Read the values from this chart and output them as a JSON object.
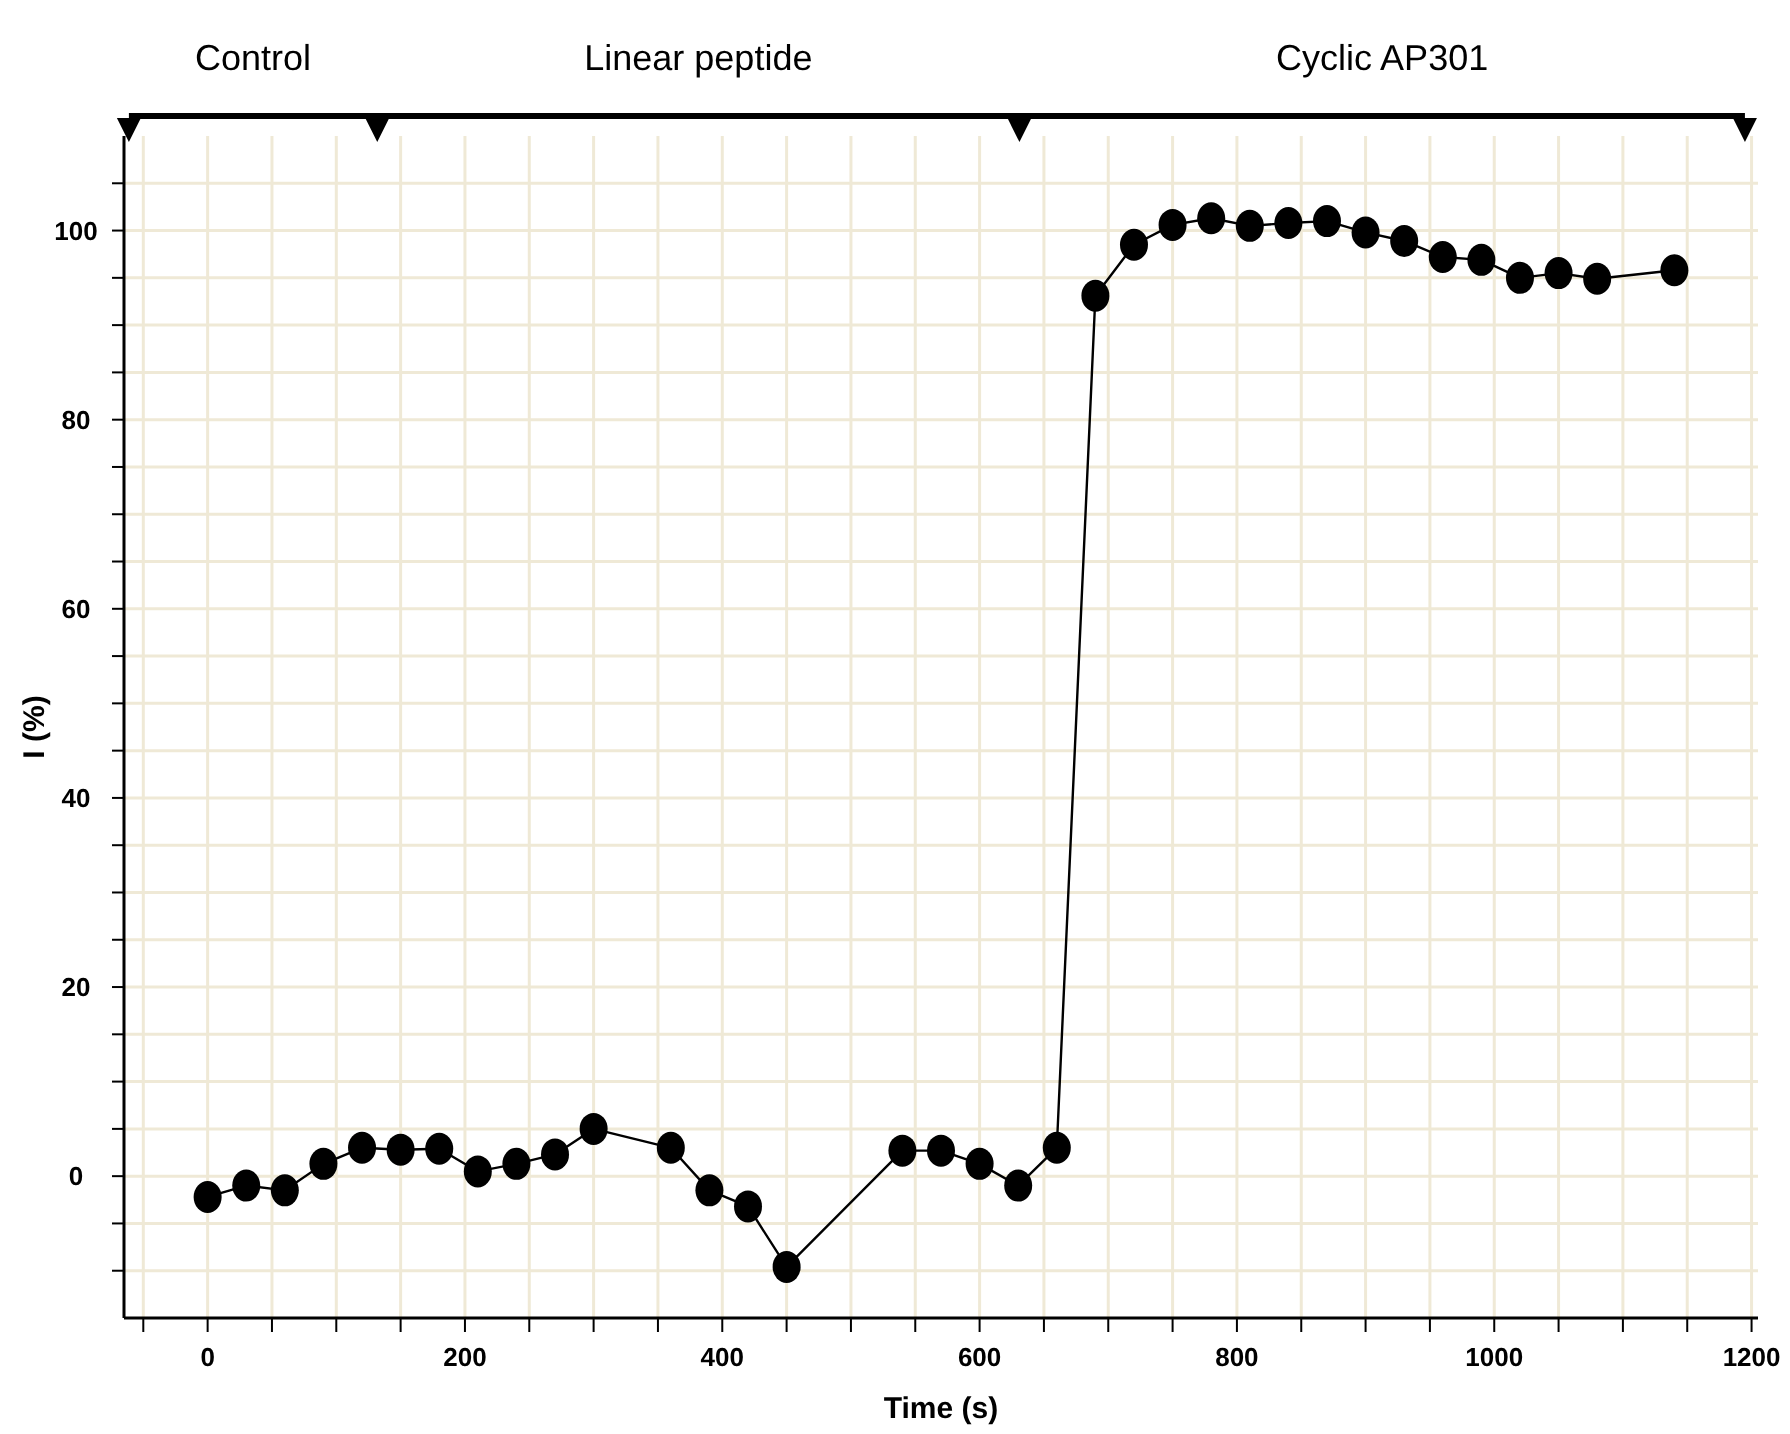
{
  "chart_data": {
    "type": "line",
    "xlabel": "Time (s)",
    "ylabel": "I (%)",
    "x": [
      0,
      30,
      60,
      90,
      120,
      150,
      180,
      210,
      240,
      270,
      300,
      360,
      390,
      420,
      450,
      540,
      570,
      600,
      630,
      660,
      690,
      720,
      750,
      780,
      810,
      840,
      870,
      900,
      930,
      960,
      990,
      1020,
      1050,
      1080,
      1140
    ],
    "series": [
      {
        "color": "#000000",
        "values": [
          -2.2,
          -1.0,
          -1.5,
          1.3,
          3.0,
          2.8,
          2.9,
          0.5,
          1.3,
          2.3,
          5.0,
          3.0,
          -1.5,
          -3.2,
          -9.6,
          2.7,
          2.7,
          1.3,
          -1.0,
          3.0,
          93.1,
          98.5,
          100.6,
          101.3,
          100.5,
          100.8,
          101.0,
          99.8,
          98.9,
          97.2,
          96.9,
          95.0,
          95.5,
          94.9,
          95.8
        ]
      }
    ],
    "xlim": [
      -65,
      1205
    ],
    "ylim": [
      -15,
      110
    ],
    "xticks": [
      {
        "value": -50,
        "label": null
      },
      0,
      {
        "value": 50,
        "label": null
      },
      {
        "value": 100,
        "label": null
      },
      {
        "value": 150,
        "label": null
      },
      200,
      {
        "value": 250,
        "label": null
      },
      {
        "value": 300,
        "label": null
      },
      {
        "value": 350,
        "label": null
      },
      400,
      {
        "value": 450,
        "label": null
      },
      {
        "value": 500,
        "label": null
      },
      {
        "value": 550,
        "label": null
      },
      600,
      {
        "value": 650,
        "label": null
      },
      {
        "value": 700,
        "label": null
      },
      {
        "value": 750,
        "label": null
      },
      800,
      {
        "value": 850,
        "label": null
      },
      {
        "value": 900,
        "label": null
      },
      {
        "value": 950,
        "label": null
      },
      1000,
      {
        "value": 1050,
        "label": null
      },
      {
        "value": 1100,
        "label": null
      },
      {
        "value": 1150,
        "label": null
      },
      1200
    ],
    "yticks": [
      {
        "value": -10,
        "label": null
      },
      {
        "value": -5,
        "label": null
      },
      0,
      {
        "value": 5,
        "label": null
      },
      {
        "value": 10,
        "label": null
      },
      {
        "value": 15,
        "label": null
      },
      20,
      {
        "value": 25,
        "label": null
      },
      {
        "value": 30,
        "label": null
      },
      {
        "value": 35,
        "label": null
      },
      40,
      {
        "value": 45,
        "label": null
      },
      {
        "value": 50,
        "label": null
      },
      {
        "value": 55,
        "label": null
      },
      60,
      {
        "value": 65,
        "label": null
      },
      {
        "value": 70,
        "label": null
      },
      {
        "value": 75,
        "label": null
      },
      80,
      {
        "value": 85,
        "label": null
      },
      {
        "value": 90,
        "label": null
      },
      {
        "value": 95,
        "label": null
      },
      100,
      {
        "value": 105,
        "label": null
      }
    ],
    "grid": true,
    "marker": "circle",
    "line_style": "solid",
    "annotations": [
      "Control",
      "Linear peptide",
      "Cyclic AP301"
    ]
  }
}
